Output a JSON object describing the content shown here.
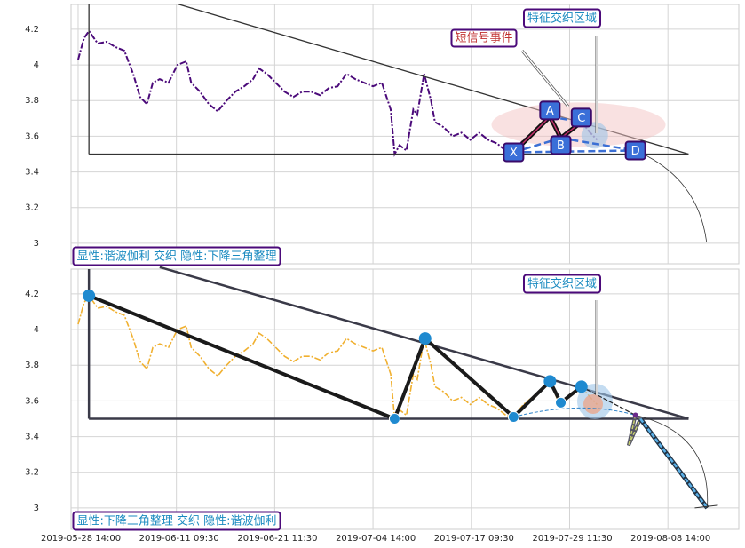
{
  "chart_data": [
    {
      "type": "line",
      "x": [
        0,
        6,
        11,
        20,
        29,
        38,
        47,
        56,
        63,
        70,
        76,
        83,
        92,
        101,
        110,
        115,
        124,
        133,
        142,
        151,
        160,
        169,
        178,
        184,
        192,
        201,
        210,
        219,
        228,
        237,
        246,
        255,
        264,
        273,
        282,
        291,
        300,
        309,
        318,
        322,
        327,
        334,
        341,
        345,
        352,
        359,
        363,
        372,
        381,
        390,
        399,
        408,
        417,
        426,
        435,
        443,
        453,
        462,
        472,
        480,
        489,
        499,
        512,
        521,
        528
      ],
      "series": [
        {
          "color": "#4b0a7a",
          "values": [
            4.03,
            4.15,
            4.19,
            4.12,
            4.13,
            4.1,
            4.08,
            3.95,
            3.82,
            3.78,
            3.9,
            3.92,
            3.9,
            4.0,
            4.02,
            3.9,
            3.85,
            3.78,
            3.74,
            3.8,
            3.85,
            3.88,
            3.92,
            3.98,
            3.95,
            3.9,
            3.85,
            3.82,
            3.85,
            3.85,
            3.83,
            3.87,
            3.88,
            3.95,
            3.92,
            3.9,
            3.88,
            3.9,
            3.75,
            3.5,
            3.55,
            3.52,
            3.75,
            3.72,
            3.95,
            3.8,
            3.68,
            3.65,
            3.6,
            3.62,
            3.58,
            3.62,
            3.58,
            3.56,
            3.52,
            3.51,
            3.58,
            3.62,
            3.66,
            3.71,
            3.59,
            3.62,
            3.68,
            3.62,
            3.58
          ]
        }
      ],
      "ylim": [
        2.885,
        4.339
      ],
      "yticks": [
        3.0,
        3.2,
        3.4,
        3.6,
        3.8,
        4.0,
        4.2
      ],
      "grid": true,
      "trendlines": [
        {
          "x": [
            102,
            621
          ],
          "values": [
            4.34,
            3.5
          ]
        },
        {
          "x": [
            11,
            621
          ],
          "values": [
            3.5,
            3.5
          ]
        }
      ],
      "pattern": {
        "labels": [
          "X",
          "A",
          "B",
          "C",
          "D"
        ],
        "x": [
          443,
          480,
          491,
          512,
          567
        ],
        "values": [
          3.51,
          3.71,
          3.59,
          3.68,
          3.52
        ]
      },
      "annotations": [
        "短信号事件",
        "特征交织区域",
        "显性:谐波伽利 交织 隐性:下降三角整理"
      ]
    },
    {
      "type": "line",
      "x": [
        0,
        6,
        11,
        20,
        29,
        38,
        47,
        56,
        63,
        70,
        76,
        83,
        92,
        101,
        110,
        115,
        124,
        133,
        142,
        151,
        160,
        169,
        178,
        184,
        192,
        201,
        210,
        219,
        228,
        237,
        246,
        255,
        264,
        273,
        282,
        291,
        300,
        309,
        318,
        322,
        327,
        334,
        341,
        345,
        352,
        359,
        363,
        372,
        381,
        390,
        399,
        408,
        417,
        426,
        435,
        443,
        453,
        462,
        472,
        480,
        489,
        499,
        512,
        521,
        528
      ],
      "series": [
        {
          "color": "#f0b030",
          "values": [
            4.03,
            4.15,
            4.19,
            4.12,
            4.13,
            4.1,
            4.08,
            3.95,
            3.82,
            3.78,
            3.9,
            3.92,
            3.9,
            4.0,
            4.02,
            3.9,
            3.85,
            3.78,
            3.74,
            3.8,
            3.85,
            3.88,
            3.92,
            3.98,
            3.95,
            3.9,
            3.85,
            3.82,
            3.85,
            3.85,
            3.83,
            3.87,
            3.88,
            3.95,
            3.92,
            3.9,
            3.88,
            3.9,
            3.75,
            3.5,
            3.55,
            3.52,
            3.75,
            3.72,
            3.95,
            3.8,
            3.68,
            3.65,
            3.6,
            3.62,
            3.58,
            3.62,
            3.58,
            3.56,
            3.52,
            3.51,
            3.58,
            3.62,
            3.66,
            3.71,
            3.59,
            3.62,
            3.68,
            3.62,
            3.58
          ]
        }
      ],
      "ylim": [
        2.88,
        4.339
      ],
      "yticks": [
        3.0,
        3.2,
        3.4,
        3.6,
        3.8,
        4.0,
        4.2
      ],
      "xlim": [
        -7.2,
        672.1
      ],
      "xticks": [
        {
          "value": 0,
          "label": "2019-05-28 14:00"
        },
        {
          "value": 100,
          "label": "2019-06-11 09:30"
        },
        {
          "value": 200,
          "label": "2019-06-21 11:30"
        },
        {
          "value": 300,
          "label": "2019-07-04 14:00"
        },
        {
          "value": 400,
          "label": "2019-07-17 09:30"
        },
        {
          "value": 500,
          "label": "2019-07-29 11:30"
        },
        {
          "value": 600,
          "label": "2019-08-08 14:00"
        }
      ],
      "grid": true,
      "trendlines": [
        {
          "x": [
            83,
            621
          ],
          "values": [
            4.35,
            3.5
          ]
        },
        {
          "x": [
            11,
            621
          ],
          "values": [
            3.5,
            3.5
          ]
        }
      ],
      "zigzag": {
        "x": [
          11,
          322,
          353,
          443,
          480,
          491,
          512
        ],
        "values": [
          4.19,
          3.5,
          3.95,
          3.51,
          3.71,
          3.59,
          3.68
        ]
      },
      "projection": {
        "x": [
          512,
          567,
          560,
          572,
          640
        ],
        "values": [
          3.68,
          3.52,
          3.35,
          3.5,
          3.0
        ]
      },
      "annotations": [
        "特征交织区域",
        "显性:下降三角整理 交织 隐性:谐波伽利"
      ]
    }
  ]
}
